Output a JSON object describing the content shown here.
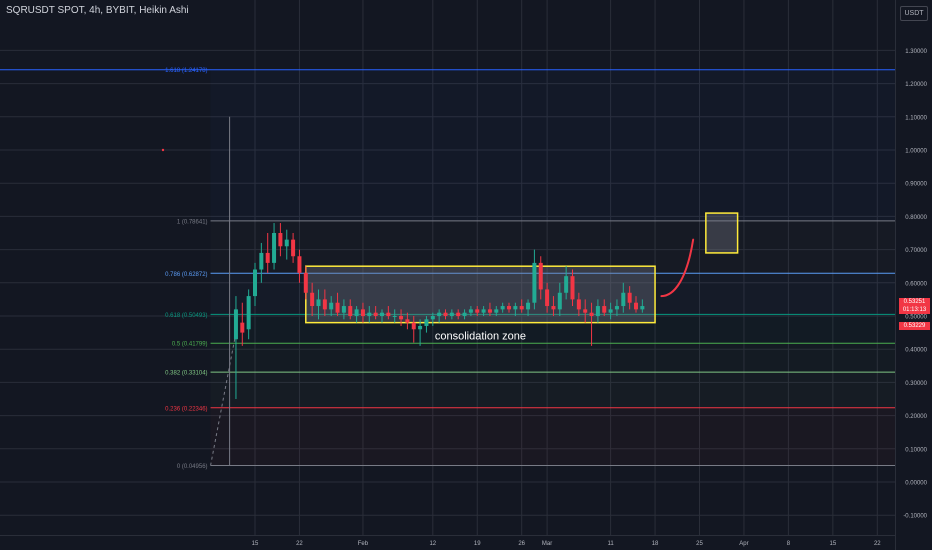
{
  "header": {
    "title": "SQRUSDT SPOT, 4h, BYBIT, Heikin Ashi",
    "quote_currency": "USDT"
  },
  "price_labels": {
    "last_price": "0.53251",
    "countdown": "01:13:13",
    "prev_close": "0.53229"
  },
  "colors": {
    "background": "#131722",
    "grid": "#2a2e39",
    "axis_text": "#b2b5be",
    "up_candle": "#22ab94",
    "down_candle": "#f23645",
    "zone_border": "#ffeb3b",
    "arrow": "#f23645"
  },
  "chart_data": {
    "type": "candlestick",
    "title": "SQRUSDT SPOT, 4h, BYBIT, Heikin Ashi",
    "y_ticks": [
      1.3,
      1.2,
      1.1,
      1.0,
      0.9,
      0.8,
      0.7,
      0.6,
      0.5,
      0.4,
      0.3,
      0.2,
      0.1,
      0.0,
      -0.1
    ],
    "y_tick_labels": [
      "1.30000",
      "1.20000",
      "1.10000",
      "1.00000",
      "0.90000",
      "0.80000",
      "0.70000",
      "0.60000",
      "0.50000",
      "0.40000",
      "0.30000",
      "0.20000",
      "0.10000",
      "0.00000",
      "-0.10000"
    ],
    "ylim": [
      -0.15,
      1.35
    ],
    "x_ticks": [
      {
        "label": "15",
        "date": "2024-01-15"
      },
      {
        "label": "22",
        "date": "2024-01-22"
      },
      {
        "label": "Feb",
        "date": "2024-02-01"
      },
      {
        "label": "12",
        "date": "2024-02-12"
      },
      {
        "label": "19",
        "date": "2024-02-19"
      },
      {
        "label": "26",
        "date": "2024-02-26"
      },
      {
        "label": "Mar",
        "date": "2024-03-01"
      },
      {
        "label": "11",
        "date": "2024-03-11"
      },
      {
        "label": "18",
        "date": "2024-03-18"
      },
      {
        "label": "25",
        "date": "2024-03-25"
      },
      {
        "label": "Apr",
        "date": "2024-04-01"
      },
      {
        "label": "8",
        "date": "2024-04-08"
      },
      {
        "label": "15",
        "date": "2024-04-15"
      },
      {
        "label": "22",
        "date": "2024-04-22"
      }
    ],
    "fib_levels": [
      {
        "ratio": "1.618",
        "value": 1.24178,
        "label": "1.618 (1.24178)",
        "color": "#2962ff"
      },
      {
        "ratio": "1",
        "value": 0.78641,
        "label": "1 (0.78641)",
        "color": "#787b86"
      },
      {
        "ratio": "0.786",
        "value": 0.62872,
        "label": "0.786 (0.62872)",
        "color": "#5b9cf6"
      },
      {
        "ratio": "0.618",
        "value": 0.50493,
        "label": "0.618 (0.50493)",
        "color": "#089981"
      },
      {
        "ratio": "0.5",
        "value": 0.41799,
        "label": "0.5 (0.41799)",
        "color": "#4caf50"
      },
      {
        "ratio": "0.382",
        "value": 0.33104,
        "label": "0.382 (0.33104)",
        "color": "#81c784"
      },
      {
        "ratio": "0.236",
        "value": 0.22346,
        "label": "0.236 (0.22346)",
        "color": "#f23645"
      },
      {
        "ratio": "0",
        "value": 0.04956,
        "label": "0 (0.04956)",
        "color": "#787b86"
      }
    ],
    "ohlc": [
      {
        "date": "2024-01-12",
        "o": 0.43,
        "h": 0.56,
        "l": 0.25,
        "c": 0.52
      },
      {
        "date": "2024-01-13",
        "o": 0.48,
        "h": 0.54,
        "l": 0.41,
        "c": 0.45
      },
      {
        "date": "2024-01-14",
        "o": 0.46,
        "h": 0.58,
        "l": 0.43,
        "c": 0.56
      },
      {
        "date": "2024-01-15",
        "o": 0.56,
        "h": 0.66,
        "l": 0.53,
        "c": 0.64
      },
      {
        "date": "2024-01-16",
        "o": 0.64,
        "h": 0.72,
        "l": 0.6,
        "c": 0.69
      },
      {
        "date": "2024-01-17",
        "o": 0.69,
        "h": 0.75,
        "l": 0.63,
        "c": 0.66
      },
      {
        "date": "2024-01-18",
        "o": 0.66,
        "h": 0.78,
        "l": 0.64,
        "c": 0.75
      },
      {
        "date": "2024-01-19",
        "o": 0.75,
        "h": 0.78,
        "l": 0.68,
        "c": 0.71
      },
      {
        "date": "2024-01-20",
        "o": 0.71,
        "h": 0.76,
        "l": 0.67,
        "c": 0.73
      },
      {
        "date": "2024-01-21",
        "o": 0.73,
        "h": 0.75,
        "l": 0.66,
        "c": 0.68
      },
      {
        "date": "2024-01-22",
        "o": 0.68,
        "h": 0.7,
        "l": 0.6,
        "c": 0.63
      },
      {
        "date": "2024-01-23",
        "o": 0.63,
        "h": 0.65,
        "l": 0.55,
        "c": 0.57
      },
      {
        "date": "2024-01-24",
        "o": 0.57,
        "h": 0.6,
        "l": 0.5,
        "c": 0.53
      },
      {
        "date": "2024-01-25",
        "o": 0.53,
        "h": 0.58,
        "l": 0.49,
        "c": 0.55
      },
      {
        "date": "2024-01-26",
        "o": 0.55,
        "h": 0.58,
        "l": 0.5,
        "c": 0.52
      },
      {
        "date": "2024-01-27",
        "o": 0.52,
        "h": 0.56,
        "l": 0.5,
        "c": 0.54
      },
      {
        "date": "2024-01-28",
        "o": 0.54,
        "h": 0.57,
        "l": 0.5,
        "c": 0.51
      },
      {
        "date": "2024-01-29",
        "o": 0.51,
        "h": 0.55,
        "l": 0.49,
        "c": 0.53
      },
      {
        "date": "2024-01-30",
        "o": 0.53,
        "h": 0.55,
        "l": 0.49,
        "c": 0.5
      },
      {
        "date": "2024-01-31",
        "o": 0.5,
        "h": 0.53,
        "l": 0.48,
        "c": 0.52
      },
      {
        "date": "2024-02-01",
        "o": 0.52,
        "h": 0.54,
        "l": 0.48,
        "c": 0.5
      },
      {
        "date": "2024-02-02",
        "o": 0.5,
        "h": 0.53,
        "l": 0.48,
        "c": 0.51
      },
      {
        "date": "2024-02-03",
        "o": 0.51,
        "h": 0.53,
        "l": 0.49,
        "c": 0.5
      },
      {
        "date": "2024-02-04",
        "o": 0.5,
        "h": 0.52,
        "l": 0.48,
        "c": 0.51
      },
      {
        "date": "2024-02-05",
        "o": 0.51,
        "h": 0.53,
        "l": 0.49,
        "c": 0.5
      },
      {
        "date": "2024-02-06",
        "o": 0.5,
        "h": 0.52,
        "l": 0.48,
        "c": 0.5
      },
      {
        "date": "2024-02-07",
        "o": 0.5,
        "h": 0.52,
        "l": 0.47,
        "c": 0.49
      },
      {
        "date": "2024-02-08",
        "o": 0.49,
        "h": 0.51,
        "l": 0.46,
        "c": 0.48
      },
      {
        "date": "2024-02-09",
        "o": 0.48,
        "h": 0.5,
        "l": 0.42,
        "c": 0.46
      },
      {
        "date": "2024-02-10",
        "o": 0.46,
        "h": 0.49,
        "l": 0.41,
        "c": 0.47
      },
      {
        "date": "2024-02-11",
        "o": 0.47,
        "h": 0.5,
        "l": 0.45,
        "c": 0.49
      },
      {
        "date": "2024-02-12",
        "o": 0.49,
        "h": 0.51,
        "l": 0.47,
        "c": 0.5
      },
      {
        "date": "2024-02-13",
        "o": 0.5,
        "h": 0.52,
        "l": 0.48,
        "c": 0.51
      },
      {
        "date": "2024-02-14",
        "o": 0.51,
        "h": 0.52,
        "l": 0.49,
        "c": 0.5
      },
      {
        "date": "2024-02-15",
        "o": 0.5,
        "h": 0.52,
        "l": 0.49,
        "c": 0.51
      },
      {
        "date": "2024-02-16",
        "o": 0.51,
        "h": 0.52,
        "l": 0.49,
        "c": 0.5
      },
      {
        "date": "2024-02-17",
        "o": 0.5,
        "h": 0.52,
        "l": 0.49,
        "c": 0.51
      },
      {
        "date": "2024-02-18",
        "o": 0.51,
        "h": 0.53,
        "l": 0.5,
        "c": 0.52
      },
      {
        "date": "2024-02-19",
        "o": 0.52,
        "h": 0.53,
        "l": 0.5,
        "c": 0.51
      },
      {
        "date": "2024-02-20",
        "o": 0.51,
        "h": 0.53,
        "l": 0.5,
        "c": 0.52
      },
      {
        "date": "2024-02-21",
        "o": 0.52,
        "h": 0.54,
        "l": 0.5,
        "c": 0.51
      },
      {
        "date": "2024-02-22",
        "o": 0.51,
        "h": 0.53,
        "l": 0.5,
        "c": 0.52
      },
      {
        "date": "2024-02-23",
        "o": 0.52,
        "h": 0.54,
        "l": 0.51,
        "c": 0.53
      },
      {
        "date": "2024-02-24",
        "o": 0.53,
        "h": 0.54,
        "l": 0.51,
        "c": 0.52
      },
      {
        "date": "2024-02-25",
        "o": 0.52,
        "h": 0.54,
        "l": 0.5,
        "c": 0.53
      },
      {
        "date": "2024-02-26",
        "o": 0.53,
        "h": 0.55,
        "l": 0.51,
        "c": 0.52
      },
      {
        "date": "2024-02-27",
        "o": 0.52,
        "h": 0.55,
        "l": 0.5,
        "c": 0.54
      },
      {
        "date": "2024-02-28",
        "o": 0.54,
        "h": 0.7,
        "l": 0.52,
        "c": 0.66
      },
      {
        "date": "2024-02-29",
        "o": 0.66,
        "h": 0.68,
        "l": 0.55,
        "c": 0.58
      },
      {
        "date": "2024-03-01",
        "o": 0.58,
        "h": 0.6,
        "l": 0.51,
        "c": 0.53
      },
      {
        "date": "2024-03-02",
        "o": 0.53,
        "h": 0.56,
        "l": 0.5,
        "c": 0.52
      },
      {
        "date": "2024-03-03",
        "o": 0.52,
        "h": 0.6,
        "l": 0.5,
        "c": 0.57
      },
      {
        "date": "2024-03-04",
        "o": 0.57,
        "h": 0.65,
        "l": 0.55,
        "c": 0.62
      },
      {
        "date": "2024-03-05",
        "o": 0.62,
        "h": 0.64,
        "l": 0.53,
        "c": 0.55
      },
      {
        "date": "2024-03-06",
        "o": 0.55,
        "h": 0.57,
        "l": 0.5,
        "c": 0.52
      },
      {
        "date": "2024-03-07",
        "o": 0.52,
        "h": 0.55,
        "l": 0.48,
        "c": 0.51
      },
      {
        "date": "2024-03-08",
        "o": 0.51,
        "h": 0.54,
        "l": 0.41,
        "c": 0.5
      },
      {
        "date": "2024-03-09",
        "o": 0.5,
        "h": 0.55,
        "l": 0.48,
        "c": 0.53
      },
      {
        "date": "2024-03-10",
        "o": 0.53,
        "h": 0.55,
        "l": 0.5,
        "c": 0.51
      },
      {
        "date": "2024-03-11",
        "o": 0.51,
        "h": 0.54,
        "l": 0.49,
        "c": 0.52
      },
      {
        "date": "2024-03-12",
        "o": 0.52,
        "h": 0.55,
        "l": 0.5,
        "c": 0.53
      },
      {
        "date": "2024-03-13",
        "o": 0.53,
        "h": 0.6,
        "l": 0.51,
        "c": 0.57
      },
      {
        "date": "2024-03-14",
        "o": 0.57,
        "h": 0.59,
        "l": 0.52,
        "c": 0.54
      },
      {
        "date": "2024-03-15",
        "o": 0.54,
        "h": 0.56,
        "l": 0.51,
        "c": 0.52
      },
      {
        "date": "2024-03-16",
        "o": 0.52,
        "h": 0.55,
        "l": 0.51,
        "c": 0.53
      }
    ],
    "annotations": [
      {
        "type": "rectangle",
        "label": "consolidation zone",
        "x0": "2024-01-23",
        "x1": "2024-03-18",
        "y0": 0.48,
        "y1": 0.65
      },
      {
        "type": "rectangle",
        "label": "",
        "x0": "2024-03-26",
        "x1": "2024-03-31",
        "y0": 0.69,
        "y1": 0.81
      },
      {
        "type": "curve",
        "label": "",
        "points": [
          [
            "2024-03-19",
            0.56
          ],
          [
            "2024-03-21",
            0.56
          ],
          [
            "2024-03-23",
            0.61
          ],
          [
            "2024-03-24",
            0.73
          ]
        ]
      }
    ]
  }
}
